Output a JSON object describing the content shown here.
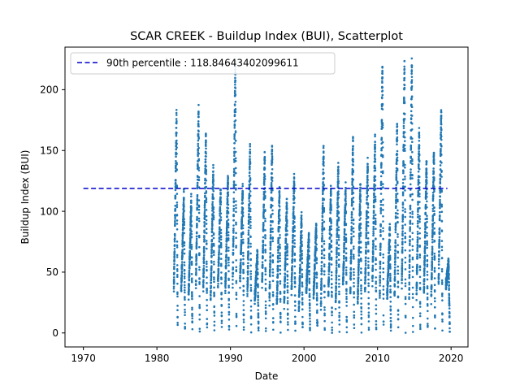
{
  "chart_data": {
    "type": "scatter",
    "title": "SCAR CREEK - Buildup Index (BUI), Scatterplot",
    "xlabel": "Date",
    "ylabel": "Buildup Index (BUI)",
    "xlim": [
      1967.5,
      2022.3
    ],
    "ylim": [
      -11.5,
      235
    ],
    "xticks": [
      1970,
      1980,
      1990,
      2000,
      2010,
      2020
    ],
    "xtick_labels": [
      "1970",
      "1980",
      "1990",
      "2000",
      "2010",
      "2020"
    ],
    "yticks": [
      0,
      50,
      100,
      150,
      200
    ],
    "ytick_labels": [
      "0",
      "50",
      "100",
      "150",
      "200"
    ],
    "grid": false,
    "legend": {
      "position": "top-left",
      "entries": [
        "90th percentile : 118.84643402099611"
      ]
    },
    "percentile_line": {
      "label": "90th percentile : 118.84643402099611",
      "value": 118.84643402099611,
      "x_start": 1970,
      "x_end": 2019.5
    },
    "series_color": "#1f77b4",
    "line_color": "#0000cc",
    "seasons": [
      {
        "year": 1982,
        "peak": 180
      },
      {
        "year": 1983,
        "peak": 115
      },
      {
        "year": 1984,
        "peak": 110
      },
      {
        "year": 1985,
        "peak": 185
      },
      {
        "year": 1986,
        "peak": 162
      },
      {
        "year": 1987,
        "peak": 135
      },
      {
        "year": 1988,
        "peak": 120
      },
      {
        "year": 1989,
        "peak": 128
      },
      {
        "year": 1990,
        "peak": 222
      },
      {
        "year": 1991,
        "peak": 120
      },
      {
        "year": 1992,
        "peak": 154
      },
      {
        "year": 1993,
        "peak": 66
      },
      {
        "year": 1994,
        "peak": 148
      },
      {
        "year": 1995,
        "peak": 155
      },
      {
        "year": 1996,
        "peak": 118
      },
      {
        "year": 1997,
        "peak": 110
      },
      {
        "year": 1998,
        "peak": 128
      },
      {
        "year": 1999,
        "peak": 96
      },
      {
        "year": 2000,
        "peak": 80
      },
      {
        "year": 2001,
        "peak": 89
      },
      {
        "year": 2002,
        "peak": 152
      },
      {
        "year": 2003,
        "peak": 120
      },
      {
        "year": 2004,
        "peak": 139
      },
      {
        "year": 2005,
        "peak": 120
      },
      {
        "year": 2006,
        "peak": 158
      },
      {
        "year": 2007,
        "peak": 120
      },
      {
        "year": 2008,
        "peak": 140
      },
      {
        "year": 2009,
        "peak": 160
      },
      {
        "year": 2010,
        "peak": 222
      },
      {
        "year": 2011,
        "peak": 86
      },
      {
        "year": 2012,
        "peak": 172
      },
      {
        "year": 2013,
        "peak": 221
      },
      {
        "year": 2014,
        "peak": 224
      },
      {
        "year": 2015,
        "peak": 165
      },
      {
        "year": 2016,
        "peak": 142
      },
      {
        "year": 2017,
        "peak": 150
      },
      {
        "year": 2018,
        "peak": 184
      },
      {
        "year": 2019,
        "peak": 58
      }
    ]
  }
}
